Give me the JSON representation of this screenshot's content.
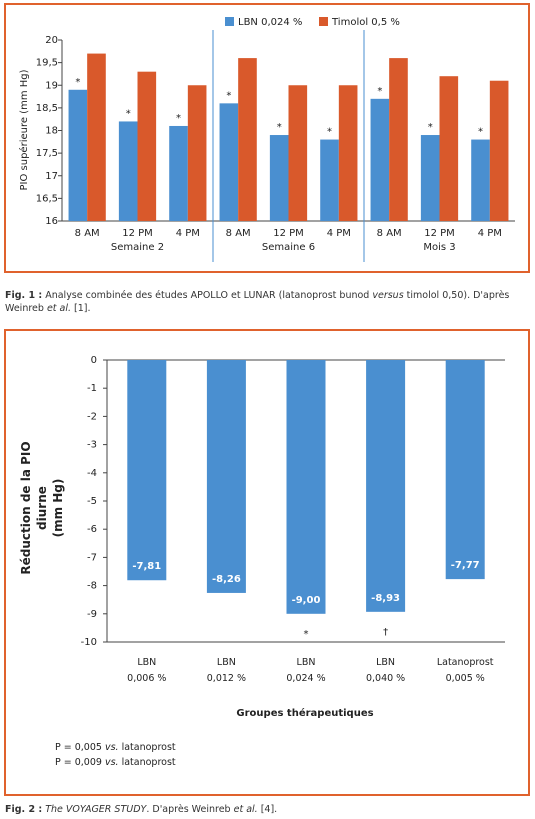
{
  "chart_data": [
    {
      "type": "bar",
      "y_label": "PIO supérieure (mm Hg)",
      "categories": [
        "8 AM",
        "12 PM",
        "4 PM",
        "8 AM",
        "12 PM",
        "4 PM",
        "8 AM",
        "12 PM",
        "4 PM"
      ],
      "groups": [
        "Semaine 2",
        "Semaine 6",
        "Mois 3"
      ],
      "series": [
        {
          "name": "LBN 0,024 %",
          "color": "#4a8fd0",
          "values": [
            18.9,
            18.2,
            18.1,
            18.6,
            17.9,
            17.8,
            18.7,
            17.9,
            17.8
          ]
        },
        {
          "name": "Timolol 0,5 %",
          "color": "#d9592b",
          "values": [
            19.7,
            19.3,
            19.0,
            19.6,
            19.0,
            19.0,
            19.6,
            19.2,
            19.1
          ]
        }
      ],
      "annotations": [
        "*",
        "*",
        "*",
        "*",
        "*",
        "*",
        "*",
        "*",
        "*"
      ],
      "ylim": [
        16,
        20
      ],
      "yticks": [
        16,
        {
          "value": 16.5,
          "label": "16,5"
        },
        17,
        {
          "value": 17.5,
          "label": "17,5"
        },
        18,
        {
          "value": 18.5,
          "label": "18,5"
        },
        19,
        {
          "value": 19.5,
          "label": "19,5"
        },
        20
      ],
      "legend": "top",
      "caption": [
        "Fig. 1 :",
        " Analyse combinée des études APOLLO et LUNAR (latanoprost bunod ",
        "versus",
        " timolol 0,50). D'après Weinreb ",
        "et al.",
        " [1]."
      ]
    },
    {
      "type": "bar",
      "y_label": "Réduction de la PIO diurne\n(mm Hg)",
      "x_label": "Groupes thérapeutiques",
      "categories": [
        "LBN\n0,006 %",
        "LBN\n0,012 %",
        "LBN\n0,024 %",
        "LBN\n0,040 %",
        "Latanoprost\n0,005 %"
      ],
      "values": [
        -7.81,
        -8.26,
        -9.0,
        -8.93,
        -7.77
      ],
      "value_labels": [
        "-7,81",
        "-8,26",
        "-9,00",
        "-8,93",
        "-7,77"
      ],
      "color": "#4a8fd0",
      "annotations": [
        null,
        null,
        "*",
        "†",
        null
      ],
      "ylim": [
        -10,
        0
      ],
      "yticks": [
        0,
        -1,
        -2,
        -3,
        -4,
        -5,
        -6,
        -7,
        -8,
        -9,
        -10
      ],
      "footnotes": [
        [
          "P = 0,005 ",
          "vs.",
          " latanoprost"
        ],
        [
          "P = 0,009 ",
          "vs.",
          " latanoprost"
        ]
      ],
      "caption": [
        "Fig. 2 :",
        "The VOYAGER STUDY",
        ". D'après Weinreb ",
        "et al.",
        " [4]."
      ]
    }
  ]
}
